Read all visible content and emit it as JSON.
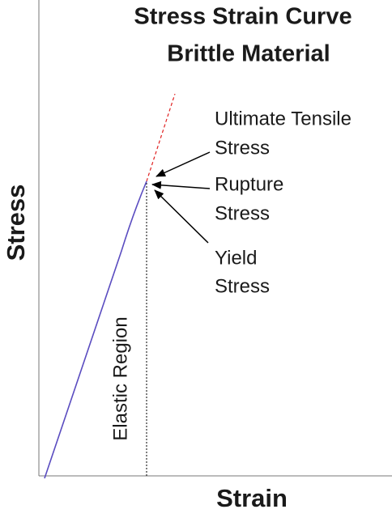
{
  "title": [
    "Stress Strain Curve",
    "Brittle Material"
  ],
  "axes": {
    "y_label": "Stress",
    "x_label": "Strain"
  },
  "region_label": "Elastic Region",
  "annotations": [
    {
      "lines": [
        "Ultimate Tensile",
        "Stress"
      ]
    },
    {
      "lines": [
        "Rupture",
        "Stress"
      ]
    },
    {
      "lines": [
        "Yield",
        "Stress"
      ]
    }
  ]
}
